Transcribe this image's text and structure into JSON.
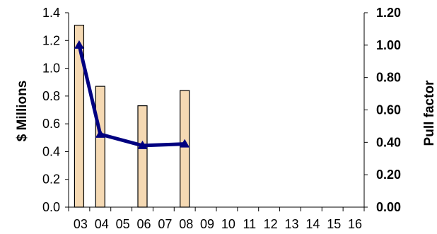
{
  "chart_data": {
    "type": "bar",
    "categories": [
      "03",
      "04",
      "05",
      "06",
      "07",
      "08",
      "09",
      "10",
      "11",
      "12",
      "13",
      "14",
      "15",
      "16"
    ],
    "series": [
      {
        "type": "bar",
        "axis": "left",
        "values": [
          1.31,
          0.87,
          null,
          0.73,
          null,
          0.84,
          null,
          null,
          null,
          null,
          null,
          null,
          null,
          null
        ]
      },
      {
        "type": "line",
        "axis": "right",
        "values": [
          1.0,
          0.45,
          null,
          0.38,
          null,
          0.39,
          null,
          null,
          null,
          null,
          null,
          null,
          null,
          null
        ]
      }
    ],
    "ylabel": "$ Millions",
    "ylabel_right": "Pull factor",
    "ylim": [
      0,
      1.4
    ],
    "ylim_right": [
      0,
      1.2
    ],
    "yticks": [
      "0.0",
      "0.2",
      "0.4",
      "0.6",
      "0.8",
      "1.0",
      "1.2",
      "1.4"
    ],
    "yticks_right": [
      "0.00",
      "0.20",
      "0.40",
      "0.60",
      "0.80",
      "1.00",
      "1.20"
    ],
    "grid": false,
    "legend": "none",
    "colors": {
      "bar_fill": "#F5D9B3",
      "bar_stroke": "#000000",
      "line": "#000080"
    }
  }
}
